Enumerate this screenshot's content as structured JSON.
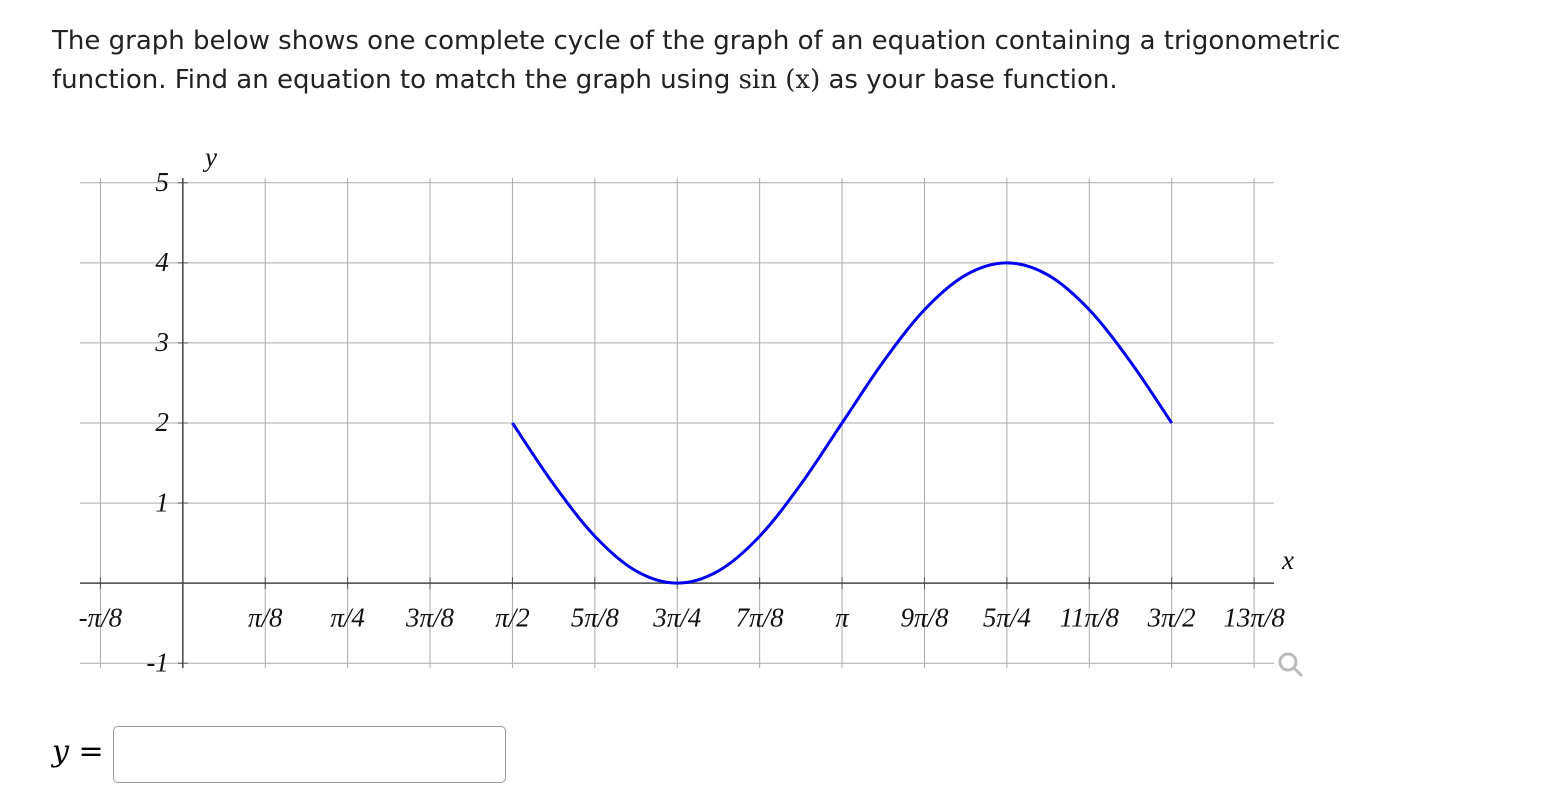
{
  "question": {
    "line1": "The graph below shows one complete cycle of the graph of an equation containing a trigonometric",
    "line2": "function. Find an equation to match the graph using",
    "base_function": "sin (x)",
    "line2_end": "as your base function."
  },
  "chart_data": {
    "type": "line",
    "x_label": "x",
    "y_label": "y",
    "xlim": [
      -0.49,
      5.2
    ],
    "ylim": [
      -1.06,
      5.06
    ],
    "xticks": [
      {
        "value": -0.3927,
        "label": "-π/8"
      },
      {
        "value": 0.3927,
        "label": "π/8"
      },
      {
        "value": 0.7854,
        "label": "π/4"
      },
      {
        "value": 1.1781,
        "label": "3π/8"
      },
      {
        "value": 1.5708,
        "label": "π/2"
      },
      {
        "value": 1.9635,
        "label": "5π/8"
      },
      {
        "value": 2.3562,
        "label": "3π/4"
      },
      {
        "value": 2.7489,
        "label": "7π/8"
      },
      {
        "value": 3.1416,
        "label": "π"
      },
      {
        "value": 3.5343,
        "label": "9π/8"
      },
      {
        "value": 3.927,
        "label": "5π/4"
      },
      {
        "value": 4.3197,
        "label": "11π/8"
      },
      {
        "value": 4.7124,
        "label": "3π/2"
      },
      {
        "value": 5.1051,
        "label": "13π/8"
      }
    ],
    "yticks": [
      -1,
      1,
      2,
      3,
      4,
      5
    ],
    "grid": true,
    "x": [
      1.5708,
      1.7671,
      1.9635,
      2.1598,
      2.3562,
      2.5525,
      2.7489,
      2.9452,
      3.1416,
      3.3379,
      3.5343,
      3.7306,
      3.927,
      4.1233,
      4.3197,
      4.516,
      4.7124
    ],
    "series": [
      {
        "color": "#0000ee",
        "values": [
          2,
          1.2346,
          0.5858,
          0.1522,
          0,
          0.1522,
          0.5858,
          1.2346,
          2,
          2.7654,
          3.4142,
          3.8478,
          4,
          3.8478,
          3.4142,
          2.7654,
          2
        ]
      }
    ]
  },
  "answer": {
    "label": "y ="
  }
}
